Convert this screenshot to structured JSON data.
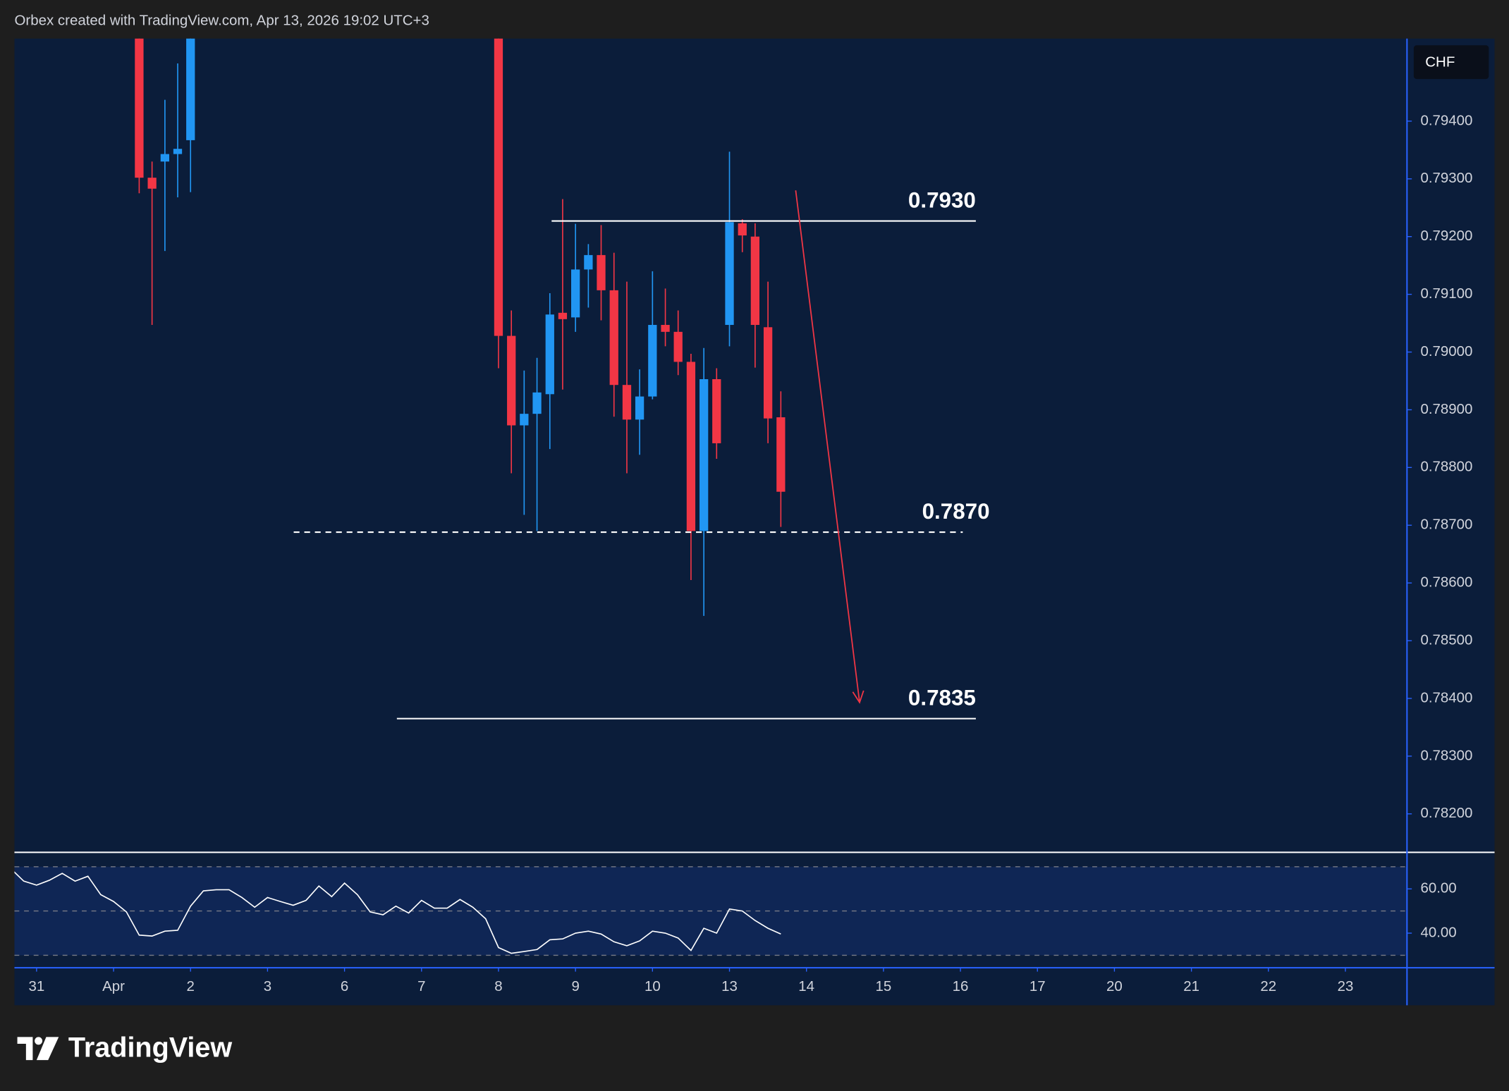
{
  "header": "Orbex created with TradingView.com, Apr 13, 2026 19:02 UTC+3",
  "footer": "TradingView",
  "chart_data": [
    {
      "type": "candlestick",
      "currency": "CHF",
      "up_color": "#2196f3",
      "down_color": "#f23645",
      "x": [
        1.333,
        1.5,
        1.667,
        1.833,
        2,
        6,
        6.167,
        6.333,
        6.5,
        6.667,
        6.833,
        7,
        7.167,
        7.333,
        7.5,
        7.667,
        7.833,
        8,
        8.167,
        8.333,
        8.5,
        8.667,
        8.833,
        9,
        9.167,
        9.333,
        9.5,
        9.667
      ],
      "open": [
        0.796,
        0.79302,
        0.7933,
        0.79343,
        0.79367,
        0.7965,
        0.79028,
        0.78873,
        0.78893,
        0.78927,
        0.79068,
        0.7906,
        0.79143,
        0.79168,
        0.79107,
        0.78943,
        0.78883,
        0.78923,
        0.79047,
        0.79035,
        0.78983,
        0.7869,
        0.78953,
        0.79047,
        0.79223,
        0.792,
        0.79043,
        0.78887
      ],
      "high": [
        0.7965,
        0.7933,
        0.79437,
        0.795,
        0.7965,
        0.797,
        0.79072,
        0.78968,
        0.7899,
        0.79102,
        0.79265,
        0.79222,
        0.79187,
        0.7922,
        0.79172,
        0.79122,
        0.7897,
        0.7914,
        0.7911,
        0.79072,
        0.78997,
        0.79007,
        0.78972,
        0.79347,
        0.7923,
        0.79223,
        0.79122,
        0.78932
      ],
      "low": [
        0.79275,
        0.79047,
        0.79175,
        0.79268,
        0.79277,
        0.78972,
        0.7879,
        0.78718,
        0.7869,
        0.78832,
        0.78935,
        0.79035,
        0.79077,
        0.79055,
        0.78888,
        0.7879,
        0.78822,
        0.78918,
        0.7901,
        0.7896,
        0.78605,
        0.78543,
        0.78815,
        0.7901,
        0.79173,
        0.78973,
        0.78842,
        0.78697
      ],
      "close": [
        0.79302,
        0.79283,
        0.79343,
        0.79352,
        0.796,
        0.79028,
        0.78873,
        0.78893,
        0.7893,
        0.79065,
        0.79057,
        0.79143,
        0.79168,
        0.79107,
        0.78943,
        0.78883,
        0.78923,
        0.79047,
        0.79035,
        0.78983,
        0.7869,
        0.78953,
        0.78842,
        0.79225,
        0.79202,
        0.79047,
        0.78885,
        0.78758
      ],
      "ylim": [
        0.78135,
        0.79543
      ],
      "yticks": [
        {
          "value": 0.794,
          "label": "0.79400"
        },
        {
          "value": 0.793,
          "label": "0.79300"
        },
        {
          "value": 0.792,
          "label": "0.79200"
        },
        {
          "value": 0.791,
          "label": "0.79100"
        },
        {
          "value": 0.79,
          "label": "0.79000"
        },
        {
          "value": 0.789,
          "label": "0.78900"
        },
        {
          "value": 0.788,
          "label": "0.78800"
        },
        {
          "value": 0.787,
          "label": "0.78700"
        },
        {
          "value": 0.786,
          "label": "0.78600"
        },
        {
          "value": 0.785,
          "label": "0.78500"
        },
        {
          "value": 0.784,
          "label": "0.78400"
        },
        {
          "value": 0.783,
          "label": "0.78300"
        },
        {
          "value": 0.782,
          "label": "0.78200"
        }
      ],
      "xlim": [
        -0.2875,
        17.8
      ],
      "xticks": [
        {
          "value": 0,
          "label": "31"
        },
        {
          "value": 1,
          "label": "Apr"
        },
        {
          "value": 2,
          "label": "2"
        },
        {
          "value": 3,
          "label": "3"
        },
        {
          "value": 4,
          "label": "6"
        },
        {
          "value": 5,
          "label": "7"
        },
        {
          "value": 6,
          "label": "8"
        },
        {
          "value": 7,
          "label": "9"
        },
        {
          "value": 8,
          "label": "10"
        },
        {
          "value": 9,
          "label": "13"
        },
        {
          "value": 10,
          "label": "14"
        },
        {
          "value": 11,
          "label": "15"
        },
        {
          "value": 12,
          "label": "16"
        },
        {
          "value": 13,
          "label": "17"
        },
        {
          "value": 14,
          "label": "20"
        },
        {
          "value": 15,
          "label": "21"
        },
        {
          "value": 16,
          "label": "22"
        },
        {
          "value": 17,
          "label": "23"
        }
      ],
      "levels": [
        {
          "text": "0.7930",
          "y": 0.79227,
          "x0": 6.69,
          "x1": 12.2,
          "style": "solid"
        },
        {
          "text": "0.7870",
          "y": 0.78688,
          "x0": 3.34,
          "x1": 12.03,
          "style": "dashed"
        },
        {
          "text": "0.7835",
          "y": 0.78365,
          "x0": 4.68,
          "x1": 12.2,
          "style": "solid"
        }
      ],
      "arrow": {
        "x0": 9.86,
        "y0": 0.7928,
        "x1": 10.69,
        "y1": 0.78393,
        "color": "#f23645"
      }
    },
    {
      "type": "line",
      "color": "#ffffff",
      "x": [
        -0.333,
        -0.167,
        0,
        0.167,
        0.333,
        0.5,
        0.667,
        0.833,
        1,
        1.167,
        1.333,
        1.5,
        1.667,
        1.833,
        2,
        2.167,
        2.333,
        2.5,
        2.667,
        2.833,
        3,
        3.167,
        3.333,
        3.5,
        3.667,
        3.833,
        4,
        4.167,
        4.333,
        4.5,
        4.667,
        4.833,
        5,
        5.167,
        5.333,
        5.5,
        5.667,
        5.833,
        6,
        6.167,
        6.333,
        6.5,
        6.667,
        6.833,
        7,
        7.167,
        7.333,
        7.5,
        7.667,
        7.833,
        8,
        8.167,
        8.333,
        8.5,
        8.667,
        8.833,
        9,
        9.167,
        9.333,
        9.5,
        9.667
      ],
      "values": [
        69.1,
        63.5,
        61.7,
        63.9,
        67.0,
        63.5,
        65.7,
        57.4,
        54.3,
        49.6,
        39.1,
        38.7,
        40.9,
        41.3,
        52.2,
        59.1,
        59.6,
        59.6,
        56.1,
        51.7,
        56.1,
        54.3,
        52.6,
        54.8,
        61.3,
        56.5,
        62.6,
        57.4,
        49.6,
        48.3,
        52.2,
        49.1,
        54.8,
        51.3,
        51.3,
        55.2,
        51.7,
        46.5,
        33.5,
        30.9,
        31.7,
        32.6,
        37.0,
        37.4,
        40.0,
        40.9,
        39.6,
        36.1,
        34.3,
        36.5,
        40.9,
        40.0,
        37.8,
        32.2,
        42.2,
        40.0,
        50.9,
        50.0,
        45.7,
        42.2,
        39.6
      ],
      "ylim": [
        24.8,
        76.5
      ],
      "yticks": [
        {
          "value": 60,
          "label": "60.00"
        },
        {
          "value": 40,
          "label": "40.00"
        }
      ],
      "bands": [
        70,
        50,
        30
      ]
    }
  ]
}
